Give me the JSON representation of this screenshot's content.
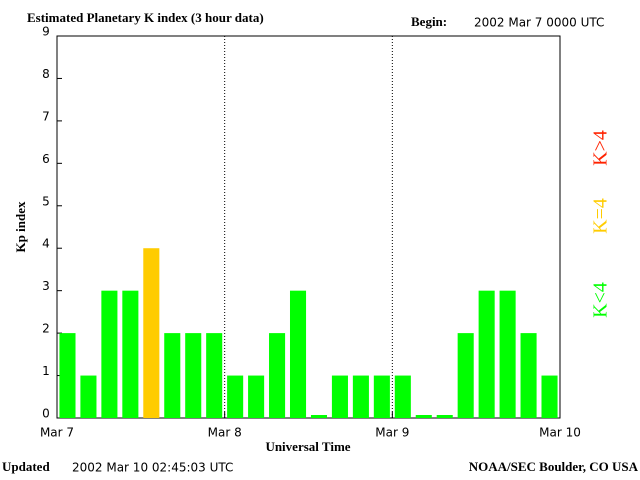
{
  "chart_data": {
    "type": "bar",
    "title": "Estimated Planetary K index (3 hour data)",
    "begin_label": "Begin:",
    "begin_value": "2002 Mar 7 0000 UTC",
    "y_label": "Kp index",
    "x_label": "Universal Time",
    "updated_label": "Updated",
    "updated_value": "2002 Mar 10 02:45:03 UTC",
    "source": "NOAA/SEC Boulder, CO USA",
    "x": [
      0,
      3,
      6,
      9,
      12,
      15,
      18,
      21,
      24,
      27,
      30,
      33,
      36,
      39,
      42,
      45,
      48,
      51,
      54,
      57,
      60,
      63,
      66,
      69
    ],
    "values": [
      2,
      1,
      3,
      3,
      4,
      2,
      2,
      2,
      1,
      1,
      2,
      3,
      0,
      1,
      1,
      1,
      1,
      0,
      0,
      2,
      3,
      3,
      2,
      1
    ],
    "colors": [
      "#00ff00",
      "#00ff00",
      "#00ff00",
      "#00ff00",
      "#ffcc00",
      "#00ff00",
      "#00ff00",
      "#00ff00",
      "#00ff00",
      "#00ff00",
      "#00ff00",
      "#00ff00",
      "#00ff00",
      "#00ff00",
      "#00ff00",
      "#00ff00",
      "#00ff00",
      "#00ff00",
      "#00ff00",
      "#00ff00",
      "#00ff00",
      "#00ff00",
      "#00ff00",
      "#00ff00"
    ],
    "bar_width_hours": 2.3,
    "xlim": [
      0,
      72
    ],
    "xticks": [
      {
        "value": 0,
        "label": "Mar 7"
      },
      {
        "value": 24,
        "label": "Mar 8"
      },
      {
        "value": 48,
        "label": "Mar 9"
      },
      {
        "value": 72,
        "label": "Mar 10"
      }
    ],
    "ylim": [
      0,
      9
    ],
    "yticks": [
      0,
      1,
      2,
      3,
      4,
      5,
      6,
      7,
      8,
      9
    ],
    "legend": [
      {
        "name": "K<4",
        "color": "#00ff00"
      },
      {
        "name": "K=4",
        "color": "#ffcc00"
      },
      {
        "name": "K>4",
        "color": "#ff2200"
      }
    ]
  }
}
